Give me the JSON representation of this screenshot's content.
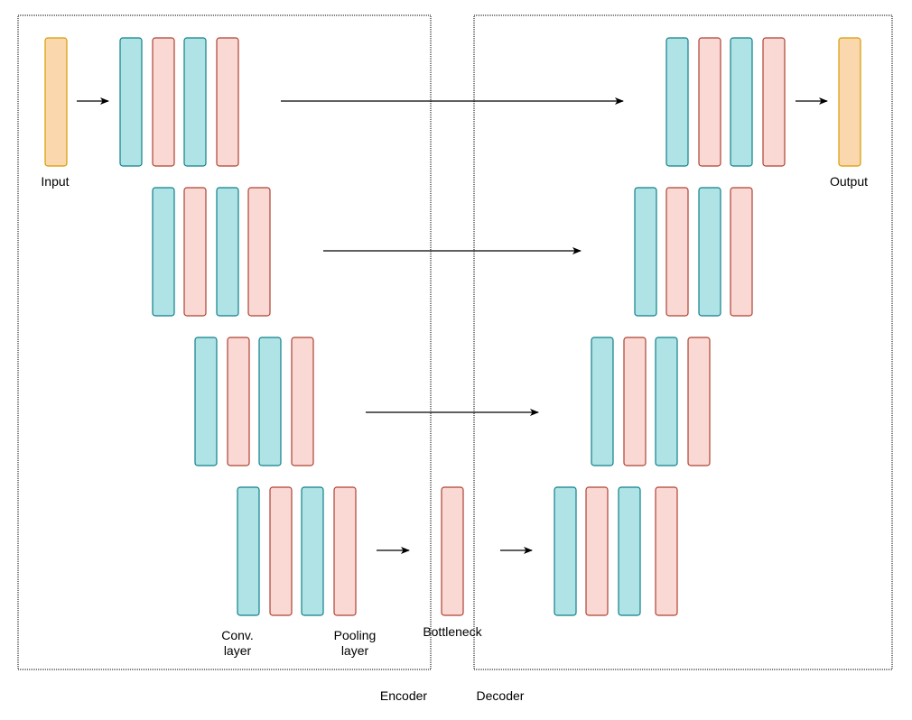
{
  "labels": {
    "input": "Input",
    "output": "Output",
    "conv_line1": "Conv.",
    "conv_line2": "layer",
    "pool_line1": "Pooling",
    "pool_line2": "layer",
    "bottleneck": "Bottleneck",
    "encoder": "Encoder",
    "decoder": "Decoder"
  },
  "colors": {
    "io_fill": "#fad7ac",
    "io_stroke": "#d79b00",
    "conv_fill": "#b0e3e6",
    "conv_stroke": "#0e8088",
    "pool_fill": "#fad9d5",
    "pool_stroke": "#ae4132",
    "arrow": "#000000",
    "border": "#000000"
  }
}
